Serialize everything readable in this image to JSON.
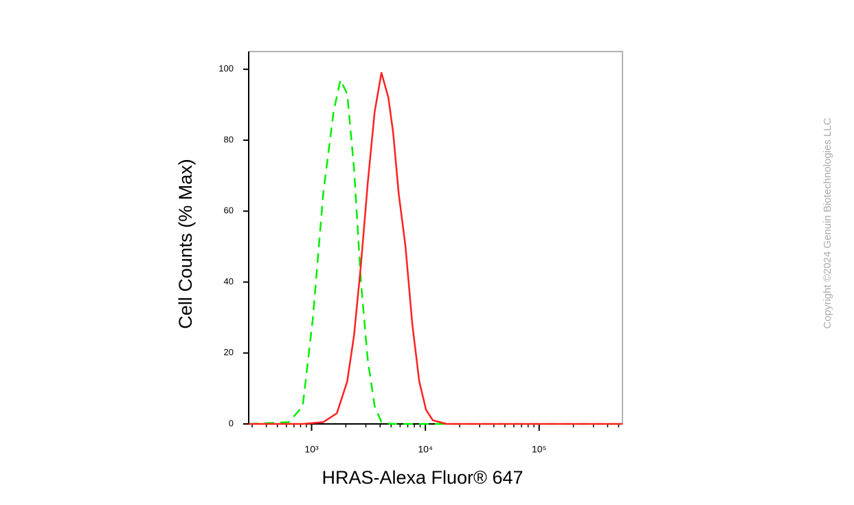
{
  "chart_data": {
    "type": "line",
    "xlabel": "HRAS-Alexa Fluor® 647",
    "ylabel": "Cell Counts (% Max)",
    "xscale": "log",
    "xlim": [
      280,
      540000
    ],
    "ylim": [
      0,
      105
    ],
    "xticks": [
      {
        "value": 1000,
        "label": "10³"
      },
      {
        "value": 10000,
        "label": "10⁴"
      },
      {
        "value": 100000,
        "label": "10⁵"
      }
    ],
    "xminorticks": [
      300,
      400,
      500,
      600,
      700,
      800,
      900,
      2000,
      3000,
      4000,
      5000,
      6000,
      7000,
      8000,
      9000,
      20000,
      30000,
      40000,
      50000,
      60000,
      70000,
      80000,
      90000,
      200000,
      300000,
      400000,
      500000
    ],
    "yticks": [
      0,
      20,
      40,
      60,
      80,
      100
    ],
    "series": [
      {
        "color": "#00ee00",
        "dash": true,
        "x": [
          280,
          632,
          835,
          1028,
          1266,
          1559,
          1791,
          2056,
          2361,
          2715,
          3119,
          3581,
          4113,
          5070,
          540000
        ],
        "values": [
          0,
          0.5,
          5,
          30,
          65,
          88,
          97,
          93,
          72,
          40,
          18,
          5,
          0.5,
          0,
          0
        ]
      },
      {
        "color": "#ff2020",
        "dash": false,
        "x": [
          280,
          835,
          1266,
          1666,
          2056,
          2361,
          2715,
          3119,
          3581,
          4113,
          4731,
          5213,
          5826,
          6686,
          7686,
          8828,
          10140,
          11650,
          15380,
          540000
        ],
        "values": [
          0,
          0,
          0.5,
          3,
          12,
          25,
          45,
          68,
          88,
          99,
          92,
          82,
          65,
          50,
          28,
          12,
          4,
          1,
          0,
          0
        ]
      }
    ]
  },
  "watermark": "Copyright ©2024 Genuin Biotechnologies LLC"
}
